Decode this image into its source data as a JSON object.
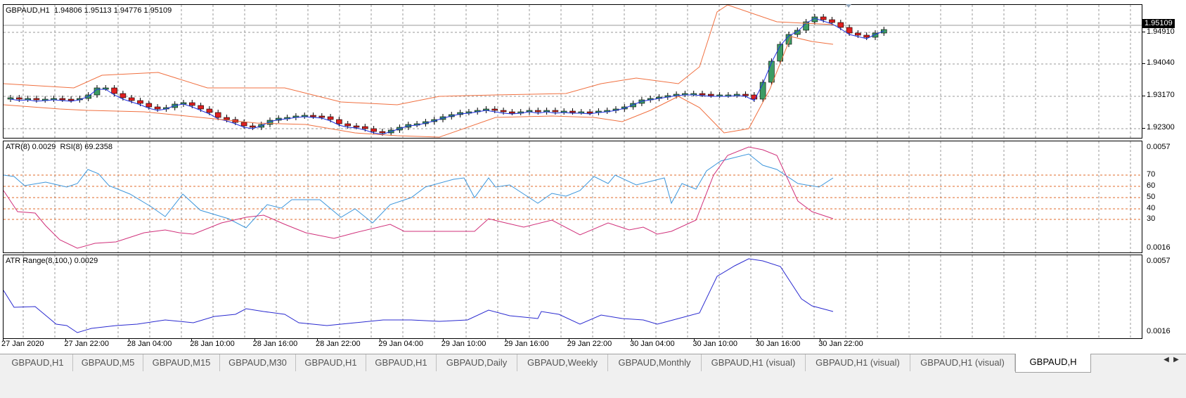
{
  "chart": {
    "symbol_info": "GBPAUD,H1  1.94806 1.95113 1.94776 1.95109",
    "current_price": "1.95109",
    "price_labels": [
      "1.94910",
      "1.94040",
      "1.93170",
      "1.92300"
    ],
    "osc_label": "ATR(8) 0.0029  RSI(8) 69.2358",
    "osc_scale_labels": [
      "0.0057",
      "70",
      "60",
      "50",
      "40",
      "30",
      "0.0016"
    ],
    "atr_label": "ATR Range(8,100,) 0.0029",
    "atr_scale_labels": [
      "0.0057",
      "0.0016"
    ],
    "time_labels": [
      "27 Jan 2020",
      "27 Jan 22:00",
      "28 Jan 04:00",
      "28 Jan 10:00",
      "28 Jan 16:00",
      "28 Jan 22:00",
      "29 Jan 04:00",
      "29 Jan 10:00",
      "29 Jan 16:00",
      "29 Jan 22:00",
      "30 Jan 04:00",
      "30 Jan 10:00",
      "30 Jan 16:00",
      "30 Jan 22:00"
    ]
  },
  "tabs": [
    {
      "label": "GBPAUD,H1"
    },
    {
      "label": "GBPAUD,M5"
    },
    {
      "label": "GBPAUD,M15"
    },
    {
      "label": "GBPAUD,M30"
    },
    {
      "label": "GBPAUD,H1"
    },
    {
      "label": "GBPAUD,H1"
    },
    {
      "label": "GBPAUD,Daily"
    },
    {
      "label": "GBPAUD,Weekly"
    },
    {
      "label": "GBPAUD,Monthly"
    },
    {
      "label": "GBPAUD,H1 (visual)"
    },
    {
      "label": "GBPAUD,H1 (visual)"
    },
    {
      "label": "GBPAUD,H1 (visual)"
    },
    {
      "label": "GBPAUD,H"
    }
  ],
  "tab_scroll": {
    "left": "◀",
    "right": "▶"
  },
  "colors": {
    "bull": "#3c9c64",
    "bear": "#e02020",
    "bands": "#f07040",
    "ma": "#2030e0",
    "atr_line": "#3c96dc",
    "rsi_line": "#d0307a",
    "atr_range_line": "#2a2ad0",
    "level_line": "#e06a2a",
    "grid": "#9a9a9a"
  }
}
